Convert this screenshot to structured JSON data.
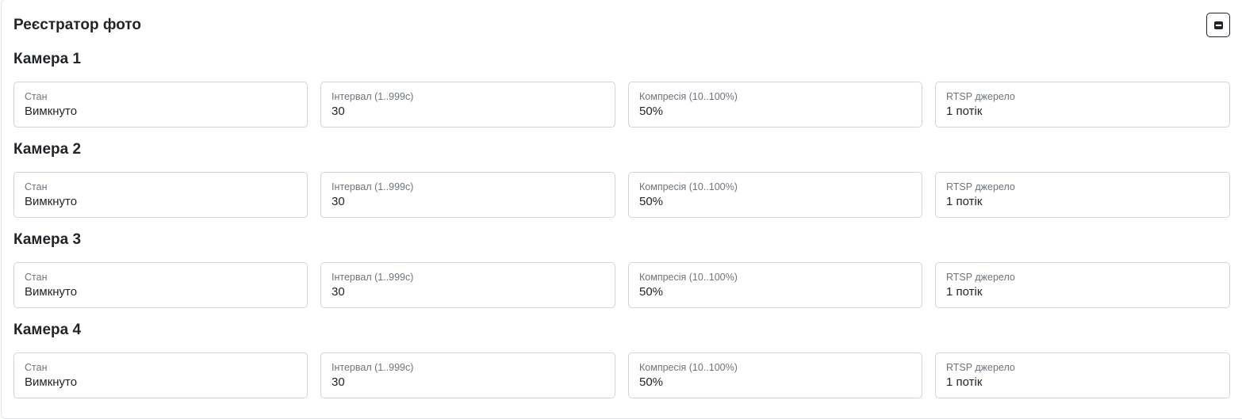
{
  "title": "Реєстратор фото",
  "collapse_icon": "minus-square-icon",
  "labels": {
    "state": "Стан",
    "interval": "Інтервал (1..999с)",
    "compression": "Компресія (10..100%)",
    "rtsp": "RTSP джерело"
  },
  "cameras": [
    {
      "name": "Камера 1",
      "state": "Вимкнуто",
      "interval": "30",
      "compression": "50%",
      "rtsp": "1 потік"
    },
    {
      "name": "Камера 2",
      "state": "Вимкнуто",
      "interval": "30",
      "compression": "50%",
      "rtsp": "1 потік"
    },
    {
      "name": "Камера 3",
      "state": "Вимкнуто",
      "interval": "30",
      "compression": "50%",
      "rtsp": "1 потік"
    },
    {
      "name": "Камера 4",
      "state": "Вимкнуто",
      "interval": "30",
      "compression": "50%",
      "rtsp": "1 потік"
    }
  ]
}
